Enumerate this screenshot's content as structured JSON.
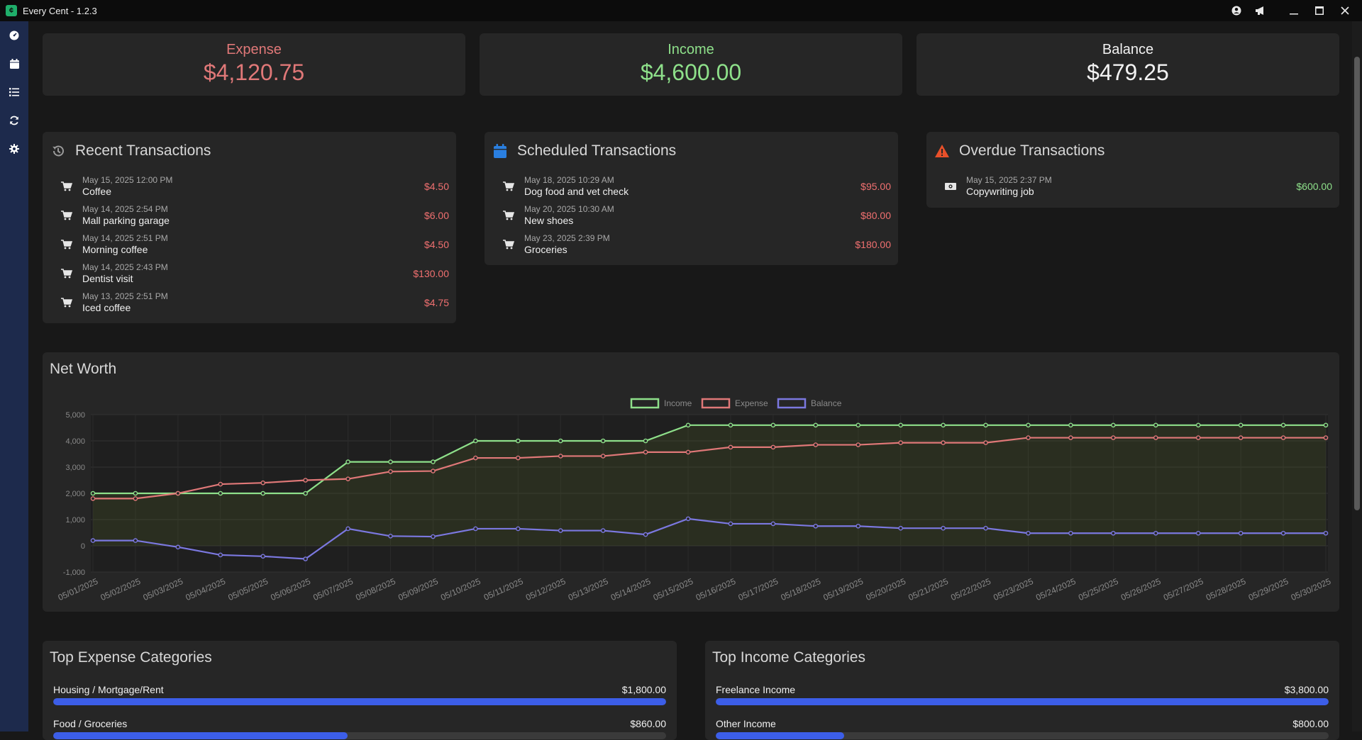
{
  "app": {
    "title": "Every Cent - 1.2.3"
  },
  "summary": {
    "expense": {
      "label": "Expense",
      "value": "$4,120.75"
    },
    "income": {
      "label": "Income",
      "value": "$4,600.00"
    },
    "balance": {
      "label": "Balance",
      "value": "$479.25"
    }
  },
  "recent": {
    "title": "Recent Transactions",
    "items": [
      {
        "date": "May 15, 2025 12:00 PM",
        "name": "Coffee",
        "amount": "$4.50",
        "type": "expense"
      },
      {
        "date": "May 14, 2025 2:54 PM",
        "name": "Mall parking garage",
        "amount": "$6.00",
        "type": "expense"
      },
      {
        "date": "May 14, 2025 2:51 PM",
        "name": "Morning coffee",
        "amount": "$4.50",
        "type": "expense"
      },
      {
        "date": "May 14, 2025 2:43 PM",
        "name": "Dentist visit",
        "amount": "$130.00",
        "type": "expense"
      },
      {
        "date": "May 13, 2025 2:51 PM",
        "name": "Iced coffee",
        "amount": "$4.75",
        "type": "expense"
      }
    ]
  },
  "scheduled": {
    "title": "Scheduled Transactions",
    "items": [
      {
        "date": "May 18, 2025 10:29 AM",
        "name": "Dog food and vet check",
        "amount": "$95.00",
        "type": "expense"
      },
      {
        "date": "May 20, 2025 10:30 AM",
        "name": "New shoes",
        "amount": "$80.00",
        "type": "expense"
      },
      {
        "date": "May 23, 2025 2:39 PM",
        "name": "Groceries",
        "amount": "$180.00",
        "type": "expense"
      }
    ]
  },
  "overdue": {
    "title": "Overdue Transactions",
    "items": [
      {
        "date": "May 15, 2025 2:37 PM",
        "name": "Copywriting job",
        "amount": "$600.00",
        "type": "income"
      }
    ]
  },
  "networth": {
    "title": "Net Worth"
  },
  "chart_data": {
    "type": "line",
    "title": "Net Worth",
    "xlabel": "",
    "ylabel": "",
    "ylim": [
      -1000,
      5000
    ],
    "yticks": [
      5000,
      4000,
      3000,
      2000,
      1000,
      0,
      -1000
    ],
    "ytick_labels": [
      "5,000",
      "4,000",
      "3,000",
      "2,000",
      "1,000",
      "0",
      "-1,000"
    ],
    "grid": true,
    "legend": "top-center",
    "categories": [
      "05/01/2025",
      "05/02/2025",
      "05/03/2025",
      "05/04/2025",
      "05/05/2025",
      "05/06/2025",
      "05/07/2025",
      "05/08/2025",
      "05/09/2025",
      "05/10/2025",
      "05/11/2025",
      "05/12/2025",
      "05/13/2025",
      "05/14/2025",
      "05/15/2025",
      "05/16/2025",
      "05/17/2025",
      "05/18/2025",
      "05/19/2025",
      "05/20/2025",
      "05/21/2025",
      "05/22/2025",
      "05/23/2025",
      "05/24/2025",
      "05/25/2025",
      "05/26/2025",
      "05/27/2025",
      "05/28/2025",
      "05/29/2025",
      "05/30/2025"
    ],
    "series": [
      {
        "name": "Income",
        "color": "#8ee08a",
        "fill": true,
        "values": [
          2000,
          2000,
          2000,
          2000,
          2000,
          2000,
          3200,
          3200,
          3200,
          4000,
          4000,
          4000,
          4000,
          4000,
          4600,
          4600,
          4600,
          4600,
          4600,
          4600,
          4600,
          4600,
          4600,
          4600,
          4600,
          4600,
          4600,
          4600,
          4600,
          4600
        ]
      },
      {
        "name": "Expense",
        "color": "#e07878",
        "fill": false,
        "values": [
          1800,
          1800,
          2000,
          2350,
          2400,
          2500,
          2550,
          2830,
          2850,
          3350,
          3350,
          3420,
          3420,
          3570,
          3570,
          3760,
          3760,
          3850,
          3850,
          3930,
          3930,
          3930,
          4120,
          4120,
          4120,
          4120,
          4120,
          4120,
          4120,
          4120
        ]
      },
      {
        "name": "Balance",
        "color": "#7b78e0",
        "fill": false,
        "values": [
          200,
          200,
          -50,
          -350,
          -400,
          -500,
          650,
          370,
          350,
          650,
          650,
          580,
          580,
          430,
          1030,
          840,
          840,
          750,
          750,
          670,
          670,
          670,
          480,
          480,
          480,
          480,
          480,
          480,
          480,
          480
        ]
      }
    ]
  },
  "top_expense": {
    "title": "Top Expense Categories",
    "items": [
      {
        "name": "Housing / Mortgage/Rent",
        "amount": "$1,800.00",
        "fraction": 1.0
      },
      {
        "name": "Food / Groceries",
        "amount": "$860.00",
        "fraction": 0.48
      }
    ]
  },
  "top_income": {
    "title": "Top Income Categories",
    "items": [
      {
        "name": "Freelance Income",
        "amount": "$3,800.00",
        "fraction": 1.0
      },
      {
        "name": "Other Income",
        "amount": "$800.00",
        "fraction": 0.21
      }
    ]
  }
}
